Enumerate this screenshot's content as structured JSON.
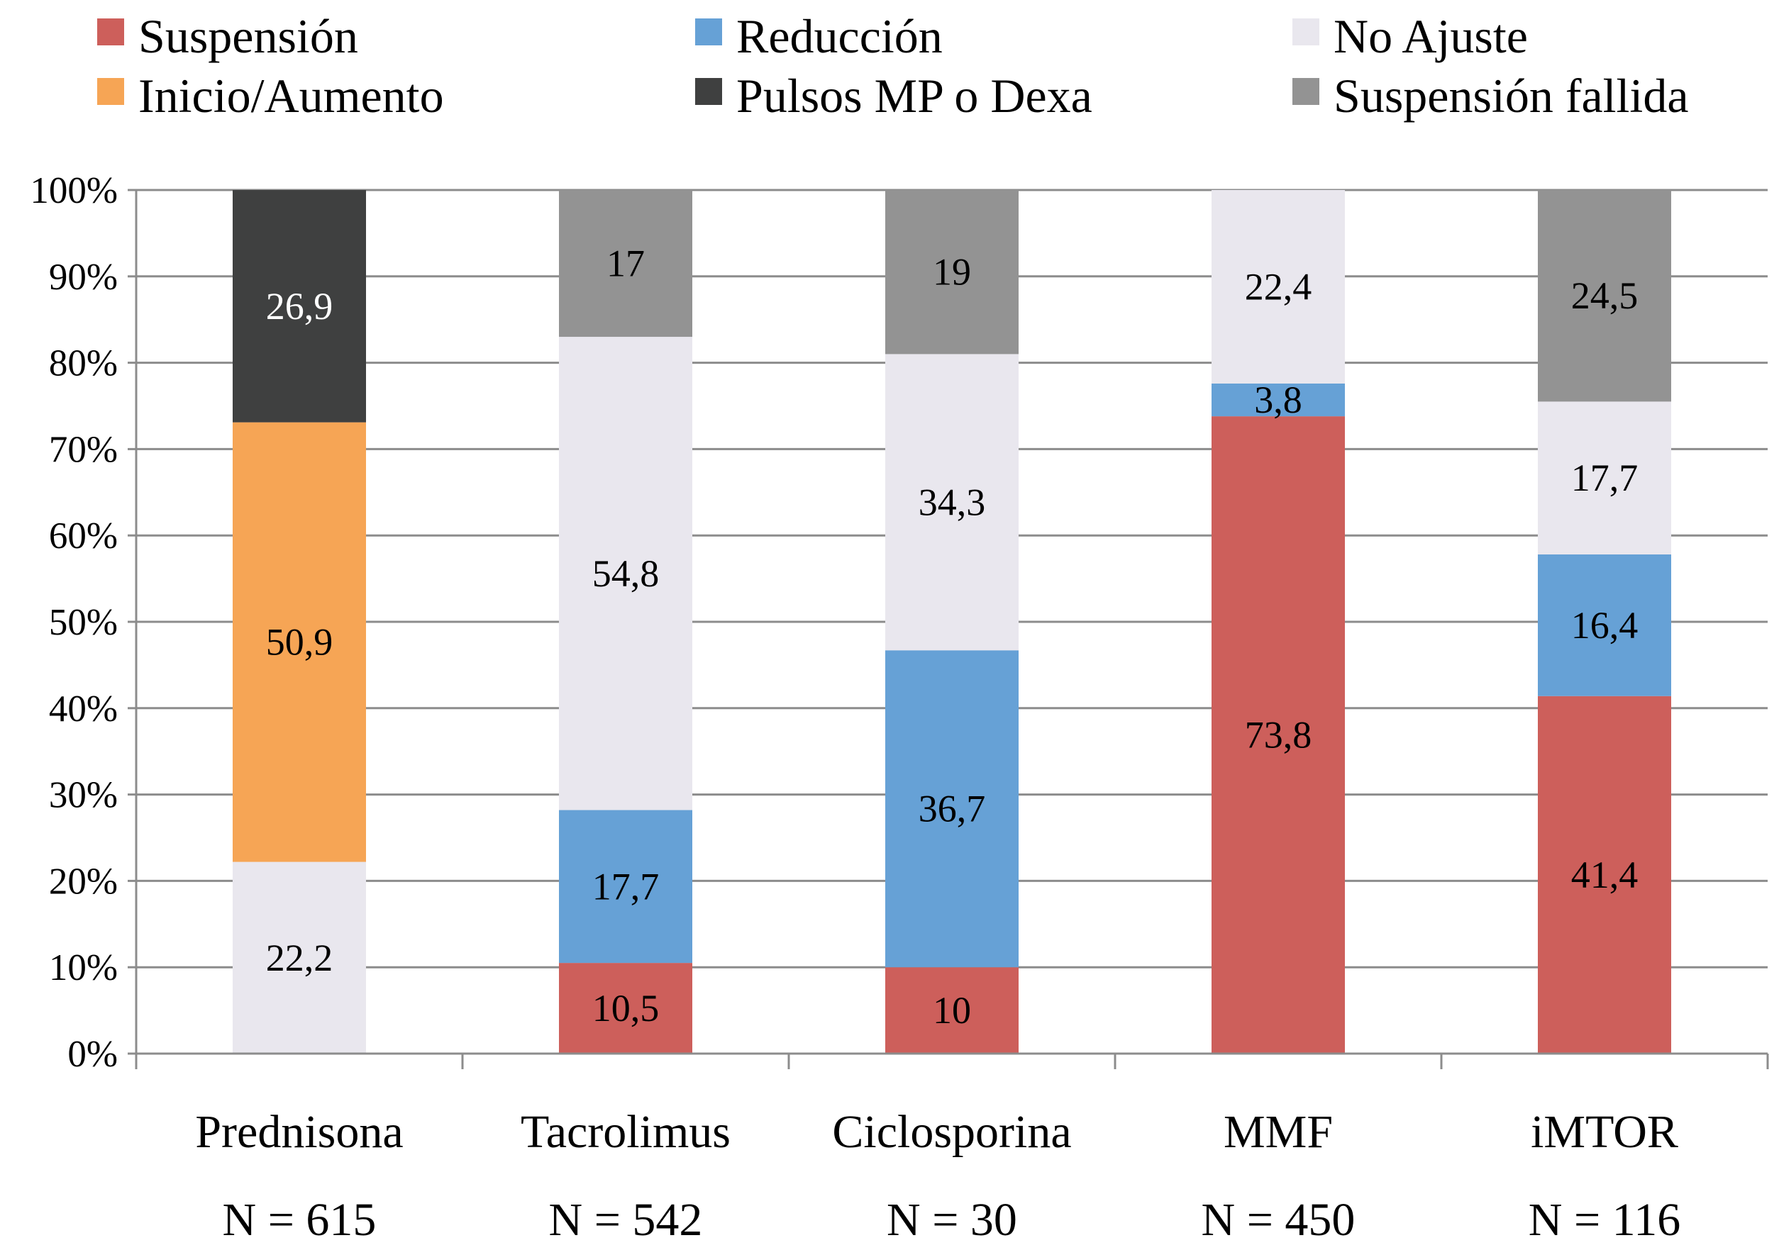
{
  "chart_data": {
    "type": "bar",
    "stacked": true,
    "categories": [
      "Prednisona",
      "Tacrolimus",
      "Ciclosporina",
      "MMF",
      "iMTOR"
    ],
    "category_sublabels": [
      "N = 615",
      "N = 542",
      "N = 30",
      "N = 450",
      "N = 116"
    ],
    "ylim": [
      0,
      100
    ],
    "yticks": [
      "0%",
      "10%",
      "20%",
      "30%",
      "40%",
      "50%",
      "60%",
      "70%",
      "80%",
      "90%",
      "100%"
    ],
    "grid": true,
    "legend_position": "top",
    "series": [
      {
        "name": "Suspensión",
        "color": "#cd5f5b",
        "values": [
          null,
          10.5,
          10,
          73.8,
          41.4
        ],
        "labels": [
          "",
          "10,5",
          "10",
          "73,8",
          "41,4"
        ]
      },
      {
        "name": "Reducción",
        "color": "#66a1d6",
        "values": [
          null,
          17.7,
          36.7,
          3.8,
          16.4
        ],
        "labels": [
          "",
          "17,7",
          "36,7",
          "3,8",
          "16,4"
        ]
      },
      {
        "name": "No Ajuste",
        "color": "#e9e7ee",
        "values": [
          22.2,
          54.8,
          34.3,
          22.4,
          17.7
        ],
        "labels": [
          "22,2",
          "54,8",
          "34,3",
          "22,4",
          "17,7"
        ]
      },
      {
        "name": "Inicio/Aumento",
        "color": "#f6a555",
        "values": [
          50.9,
          null,
          null,
          null,
          null
        ],
        "labels": [
          "50,9",
          "",
          "",
          "",
          ""
        ]
      },
      {
        "name": "Pulsos MP o Dexa",
        "color": "#3f4040",
        "values": [
          26.9,
          null,
          null,
          null,
          null
        ],
        "labels": [
          "26,9",
          "",
          "",
          "",
          ""
        ]
      },
      {
        "name": "Suspensión fallida",
        "color": "#939393",
        "values": [
          null,
          17,
          19,
          null,
          24.5
        ],
        "labels": [
          "",
          "17",
          "19",
          "",
          "24,5"
        ]
      }
    ]
  }
}
